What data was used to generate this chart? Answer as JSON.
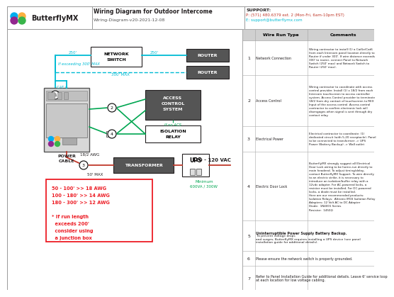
{
  "title": "Wiring Diagram for Outdoor Intercome",
  "subtitle": "Wiring-Diagram-v20-2021-12-08",
  "support_line1": "SUPPORT:",
  "support_line2": "P: (571) 480.6379 ext. 2 (Mon-Fri, 6am-10pm EST)",
  "support_line3": "E: support@butterflymx.com",
  "bg_color": "#ffffff",
  "cyan": "#00bcd4",
  "green": "#00a651",
  "red": "#ed1c24",
  "dark_red": "#c0392b",
  "wire_rows": [
    {
      "num": "1",
      "type": "Network Connection",
      "comment": "Wiring contractor to install (1) a Cat5e/Cat6\nfrom each Intercom panel location directly to\nRouter if under 300'. If wire distance exceeds\n300' to router, connect Panel to Network\nSwitch (250' max) and Network Switch to\nRouter (250' max)."
    },
    {
      "num": "2",
      "type": "Access Control",
      "comment": "Wiring contractor to coordinate with access\ncontrol provider. Install (1) x 18/2 from each\nIntercom touchscreen to access controller\nsystem. Access Control provider to terminate\n18/2 from dry contact of touchscreen to REX\nInput of the access control. Access control\ncontractor to confirm electronic lock will\ndisengages when signal is sent through dry\ncontact relay."
    },
    {
      "num": "3",
      "type": "Electrical Power",
      "comment": "Electrical contractor to coordinate: (1)\ndedicated circuit (with 5-20 receptacle). Panel\nto be connected to transformer -> UPS\nPower (Battery Backup) -> Wall outlet"
    },
    {
      "num": "4",
      "type": "Electric Door Lock",
      "comment": "ButterflyMX strongly suggest all Electrical\nDoor Lock wiring to be home-run directly to\nmain headend. To adjust timing/delay,\ncontact ButterflyMX Support. To wire directly\nto an electric strike, it is necessary to\nintroduce an isolation/buffer relay with a\n12vdc adapter. For AC-powered locks, a\nresistor must be installed. For DC-powered\nlocks, a diode must be installed.\nHere are our recommended products:\nIsolation Relays:  Altronix IR5S Isolation Relay\nAdapters: 12 Volt AC to DC Adapter\nDiode:  1N4001 Series\nResistor:  1450Ω"
    },
    {
      "num": "5",
      "type_bold": "Uninterruptible Power Supply Battery Backup.",
      "type_normal": " To prevent voltage drops\nand surges, ButterflyMX requires installing a UPS device (see panel\ninstallation guide for additional details).",
      "comment": ""
    },
    {
      "num": "6",
      "type_plain": "Please ensure the network switch is properly grounded.",
      "comment": ""
    },
    {
      "num": "7",
      "type_plain": "Refer to Panel Installation Guide for additional details. Leave 6' service loop\nat each location for low voltage cabling.",
      "comment": ""
    }
  ]
}
